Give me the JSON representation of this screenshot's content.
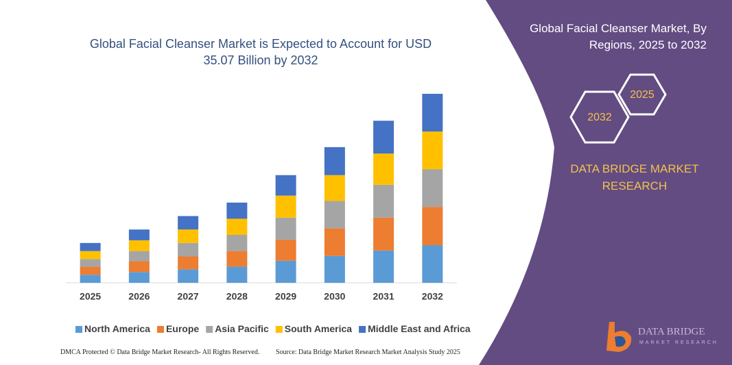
{
  "chart_data": {
    "type": "stacked-bar",
    "title": "Global Facial Cleanser Market is Expected to Account for USD 35.07 Billion by 2032",
    "categories": [
      "2025",
      "2026",
      "2027",
      "2028",
      "2029",
      "2030",
      "2031",
      "2032"
    ],
    "series": [
      {
        "name": "North America",
        "color": "#5b9bd5",
        "values": [
          1.5,
          2.0,
          2.5,
          3.0,
          4.1,
          5.0,
          6.0,
          7.0
        ]
      },
      {
        "name": "Europe",
        "color": "#ed7d31",
        "values": [
          1.5,
          2.0,
          2.4,
          2.9,
          3.9,
          5.1,
          6.1,
          7.1
        ]
      },
      {
        "name": "Asia Pacific",
        "color": "#a5a5a5",
        "values": [
          1.4,
          1.9,
          2.5,
          3.0,
          4.1,
          5.1,
          6.1,
          7.0
        ]
      },
      {
        "name": "South America",
        "color": "#ffc000",
        "values": [
          1.5,
          2.0,
          2.5,
          3.0,
          4.1,
          4.8,
          5.8,
          7.0
        ]
      },
      {
        "name": "Middle East and Africa",
        "color": "#4472c4",
        "values": [
          1.5,
          2.0,
          2.5,
          3.0,
          3.8,
          5.2,
          6.1,
          7.0
        ]
      }
    ],
    "legend": "bottom"
  },
  "panel": {
    "title": "Global Facial Cleanser Market, By Regions, 2025 to 2032",
    "hexagons": [
      "2025",
      "2032"
    ],
    "brand": "DATA BRIDGE MARKET RESEARCH",
    "logo_name": "DATA BRIDGE",
    "logo_tagline": "MARKET RESEARCH"
  },
  "footer": {
    "left": "DMCA Protected © Data Bridge Market Research- All Rights Reserved.",
    "right": "Source: Data Bridge Market Research Market Analysis Study 2025"
  }
}
